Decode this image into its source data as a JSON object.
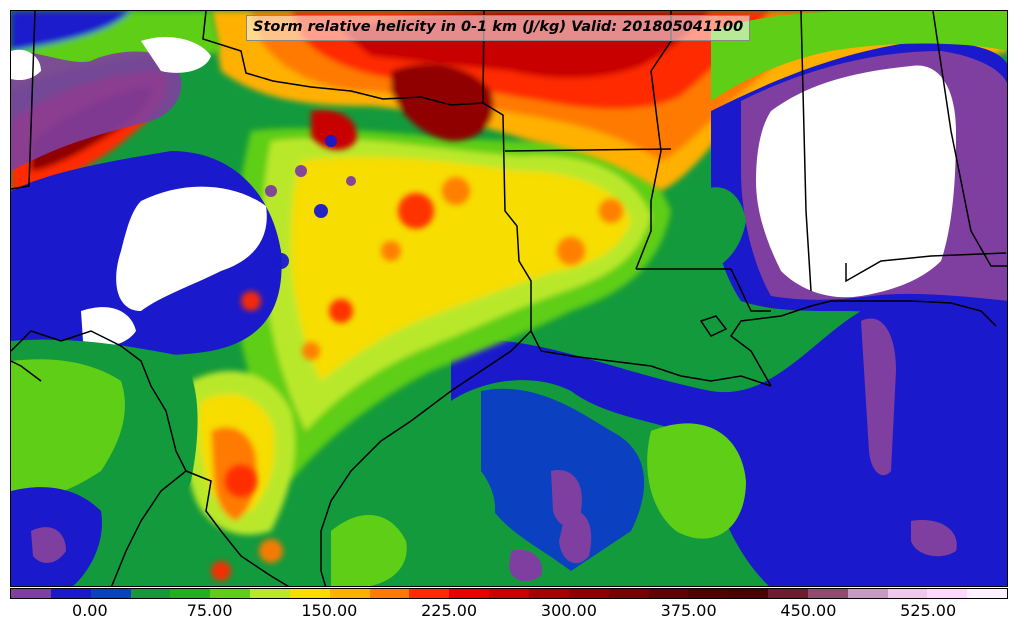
{
  "title": "Storm relative helicity in 0-1 km (J/kg) Valid: 201805041100",
  "colorbar": {
    "levels": [
      -50,
      -37.5,
      -25,
      -12.5,
      0,
      12.5,
      25,
      37.5,
      50,
      62.5,
      75,
      87.5,
      100,
      112.5,
      125,
      137.5,
      150,
      162.5,
      175,
      187.5,
      200,
      212.5,
      225,
      237.5,
      250,
      262.5,
      275,
      287.5,
      300,
      312.5,
      325,
      337.5,
      350,
      362.5,
      375,
      387.5,
      400,
      412.5,
      425,
      437.5,
      450,
      462.5,
      475,
      487.5,
      500,
      512.5,
      525,
      537.5,
      550,
      562.5,
      575
    ],
    "colors": [
      "#7e3fa0",
      "#7e3fa0",
      "#1a1acc",
      "#1a1acc",
      "#0b40c0",
      "#0b40c0",
      "#139a3c",
      "#139a3c",
      "#1fb21f",
      "#1fb21f",
      "#5fce17",
      "#5fce17",
      "#b9e82a",
      "#b9e82a",
      "#f7dd00",
      "#f7dd00",
      "#ffb000",
      "#ffb000",
      "#ff7a00",
      "#ff7a00",
      "#ff2a00",
      "#ff2a00",
      "#e60000",
      "#e60000",
      "#c80000",
      "#c80000",
      "#a80000",
      "#a80000",
      "#900000",
      "#900000",
      "#7a0000",
      "#7a0000",
      "#640000",
      "#640000",
      "#500000",
      "#500000",
      "#4a0000",
      "#4a0000",
      "#6b1e2e",
      "#6b1e2e",
      "#8e4c6e",
      "#8e4c6e",
      "#c79ac3",
      "#c79ac3",
      "#f0c8ee",
      "#f0c8ee",
      "#ffd8ff",
      "#ffd8ff",
      "#fff0ff",
      "#fff0ff"
    ],
    "tick_labels": [
      "0.00",
      "75.00",
      "150.00",
      "225.00",
      "300.00",
      "375.00",
      "450.00",
      "525.00"
    ],
    "tick_values": [
      0,
      75,
      150,
      225,
      300,
      375,
      450,
      525
    ]
  }
}
